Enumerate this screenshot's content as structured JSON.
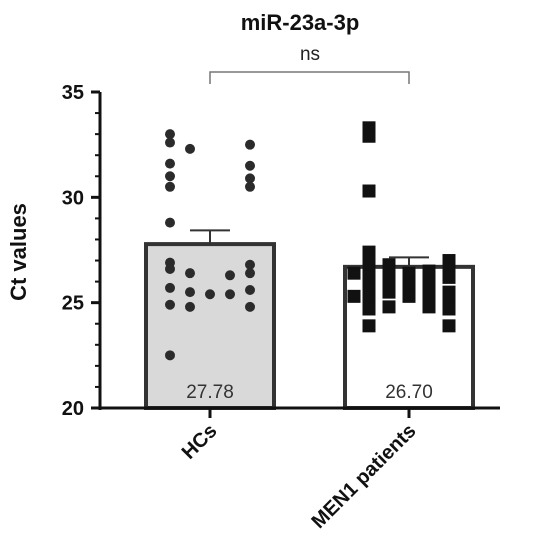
{
  "chart_data": {
    "type": "bar",
    "title": "miR-23a-3p",
    "ylabel": "Ct values",
    "xlabel": "",
    "ylim": [
      20,
      35
    ],
    "yticks": [
      20,
      25,
      30,
      35
    ],
    "categories": [
      "HCs",
      "MEN1 patients"
    ],
    "values": [
      27.78,
      26.7
    ],
    "value_labels": [
      "27.78",
      "26.70"
    ],
    "error_sem": [
      0.65,
      0.45
    ],
    "bar_fill": [
      "#d9d9d9",
      "#ffffff"
    ],
    "bar_edge": "#333333",
    "marker_shapes": [
      "circle",
      "square"
    ],
    "significance": {
      "label": "ns",
      "between": [
        0,
        1
      ]
    },
    "points": [
      [
        33.0,
        32.6,
        32.5,
        32.3,
        31.6,
        31.5,
        31.0,
        30.9,
        30.5,
        30.5,
        28.8,
        26.9,
        26.8,
        26.6,
        26.4,
        26.4,
        26.3,
        25.7,
        25.6,
        25.5,
        25.4,
        25.4,
        24.9,
        24.8,
        24.8,
        22.5
      ],
      [
        33.3,
        32.9,
        30.3,
        27.4,
        27.1,
        27.0,
        26.8,
        26.7,
        26.6,
        26.5,
        26.5,
        26.4,
        26.4,
        26.2,
        26.2,
        26.1,
        26.0,
        25.8,
        25.7,
        25.5,
        25.5,
        25.4,
        25.3,
        25.3,
        25.2,
        25.2,
        24.8,
        24.8,
        24.7,
        24.7,
        23.9,
        23.9
      ]
    ]
  }
}
